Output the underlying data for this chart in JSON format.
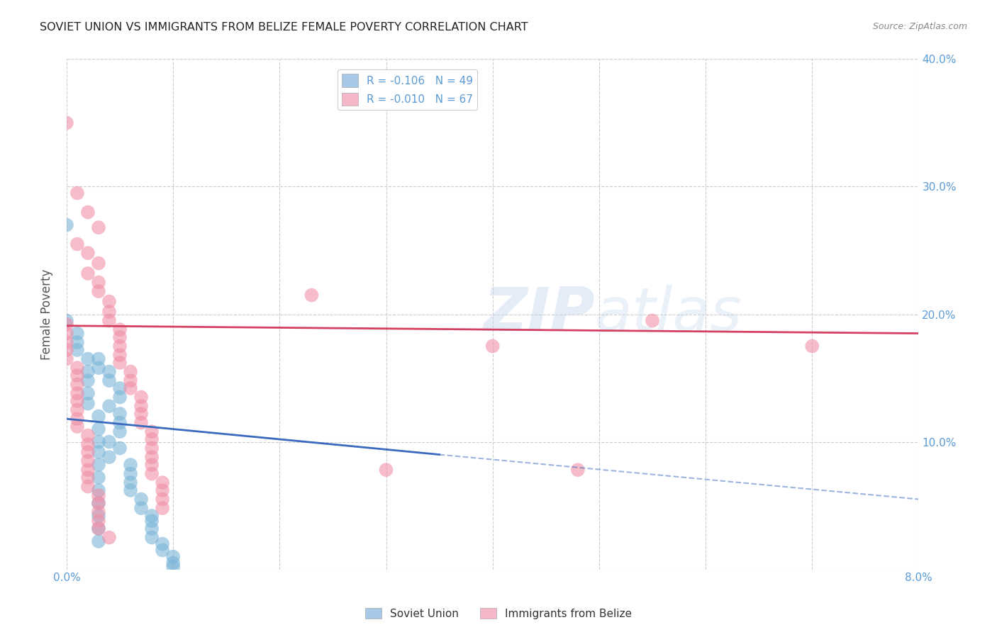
{
  "title": "SOVIET UNION VS IMMIGRANTS FROM BELIZE FEMALE POVERTY CORRELATION CHART",
  "source": "Source: ZipAtlas.com",
  "ylabel": "Female Poverty",
  "x_min": 0.0,
  "x_max": 0.08,
  "y_min": 0.0,
  "y_max": 0.4,
  "x_tick_positions": [
    0.0,
    0.01,
    0.02,
    0.03,
    0.04,
    0.05,
    0.06,
    0.07,
    0.08
  ],
  "x_tick_labels": [
    "0.0%",
    "",
    "",
    "",
    "",
    "",
    "",
    "",
    "8.0%"
  ],
  "y_tick_positions": [
    0.0,
    0.1,
    0.2,
    0.3,
    0.4
  ],
  "y_tick_labels_right": [
    "",
    "10.0%",
    "20.0%",
    "30.0%",
    "40.0%"
  ],
  "watermark": "ZIPatlas",
  "legend_entries": [
    {
      "label": "R = -0.106   N = 49",
      "color": "#a8c8e8"
    },
    {
      "label": "R = -0.010   N = 67",
      "color": "#f4b8c8"
    }
  ],
  "soviet_union_color": "#7ab4d8",
  "belize_color": "#f090a8",
  "soviet_trend_color": "#3a6abf",
  "belize_trend_color": "#d44060",
  "grid_color": "#cccccc",
  "bg_color": "#ffffff",
  "title_color": "#222222",
  "axis_label_color": "#555555",
  "tick_label_color": "#5b9bd5",
  "source_color": "#888888",
  "soviet_trend_x0": 0.0,
  "soviet_trend_y0": 0.118,
  "soviet_trend_x1": 0.035,
  "soviet_trend_y1": 0.09,
  "soviet_trend_ext_x1": 0.08,
  "soviet_trend_ext_y1": 0.055,
  "belize_trend_x0": 0.0,
  "belize_trend_y0": 0.191,
  "belize_trend_x1": 0.08,
  "belize_trend_y1": 0.185,
  "soviet_union_data": [
    [
      0.0,
      0.27
    ],
    [
      0.0,
      0.195
    ],
    [
      0.003,
      0.165
    ],
    [
      0.003,
      0.158
    ],
    [
      0.004,
      0.155
    ],
    [
      0.004,
      0.148
    ],
    [
      0.005,
      0.142
    ],
    [
      0.005,
      0.135
    ],
    [
      0.004,
      0.128
    ],
    [
      0.005,
      0.122
    ],
    [
      0.005,
      0.115
    ],
    [
      0.005,
      0.108
    ],
    [
      0.004,
      0.1
    ],
    [
      0.005,
      0.095
    ],
    [
      0.004,
      0.088
    ],
    [
      0.006,
      0.082
    ],
    [
      0.006,
      0.075
    ],
    [
      0.006,
      0.068
    ],
    [
      0.006,
      0.062
    ],
    [
      0.007,
      0.055
    ],
    [
      0.007,
      0.048
    ],
    [
      0.008,
      0.042
    ],
    [
      0.008,
      0.038
    ],
    [
      0.008,
      0.032
    ],
    [
      0.008,
      0.025
    ],
    [
      0.009,
      0.02
    ],
    [
      0.009,
      0.015
    ],
    [
      0.01,
      0.01
    ],
    [
      0.01,
      0.005
    ],
    [
      0.01,
      0.002
    ],
    [
      0.001,
      0.185
    ],
    [
      0.001,
      0.178
    ],
    [
      0.001,
      0.172
    ],
    [
      0.002,
      0.165
    ],
    [
      0.002,
      0.155
    ],
    [
      0.002,
      0.148
    ],
    [
      0.002,
      0.138
    ],
    [
      0.002,
      0.13
    ],
    [
      0.003,
      0.12
    ],
    [
      0.003,
      0.11
    ],
    [
      0.003,
      0.1
    ],
    [
      0.003,
      0.092
    ],
    [
      0.003,
      0.082
    ],
    [
      0.003,
      0.072
    ],
    [
      0.003,
      0.062
    ],
    [
      0.003,
      0.052
    ],
    [
      0.003,
      0.042
    ],
    [
      0.003,
      0.032
    ],
    [
      0.003,
      0.022
    ]
  ],
  "belize_data": [
    [
      0.0,
      0.35
    ],
    [
      0.001,
      0.295
    ],
    [
      0.002,
      0.28
    ],
    [
      0.003,
      0.268
    ],
    [
      0.001,
      0.255
    ],
    [
      0.002,
      0.248
    ],
    [
      0.003,
      0.24
    ],
    [
      0.002,
      0.232
    ],
    [
      0.003,
      0.225
    ],
    [
      0.003,
      0.218
    ],
    [
      0.004,
      0.21
    ],
    [
      0.004,
      0.202
    ],
    [
      0.004,
      0.195
    ],
    [
      0.005,
      0.188
    ],
    [
      0.005,
      0.182
    ],
    [
      0.005,
      0.175
    ],
    [
      0.005,
      0.168
    ],
    [
      0.005,
      0.162
    ],
    [
      0.006,
      0.155
    ],
    [
      0.006,
      0.148
    ],
    [
      0.006,
      0.142
    ],
    [
      0.007,
      0.135
    ],
    [
      0.007,
      0.128
    ],
    [
      0.007,
      0.122
    ],
    [
      0.007,
      0.115
    ],
    [
      0.008,
      0.108
    ],
    [
      0.008,
      0.102
    ],
    [
      0.008,
      0.095
    ],
    [
      0.008,
      0.088
    ],
    [
      0.008,
      0.082
    ],
    [
      0.008,
      0.075
    ],
    [
      0.009,
      0.068
    ],
    [
      0.009,
      0.062
    ],
    [
      0.009,
      0.055
    ],
    [
      0.009,
      0.048
    ],
    [
      0.0,
      0.192
    ],
    [
      0.0,
      0.185
    ],
    [
      0.0,
      0.178
    ],
    [
      0.0,
      0.172
    ],
    [
      0.0,
      0.165
    ],
    [
      0.001,
      0.158
    ],
    [
      0.001,
      0.152
    ],
    [
      0.001,
      0.145
    ],
    [
      0.001,
      0.138
    ],
    [
      0.001,
      0.132
    ],
    [
      0.001,
      0.125
    ],
    [
      0.001,
      0.118
    ],
    [
      0.001,
      0.112
    ],
    [
      0.002,
      0.105
    ],
    [
      0.002,
      0.098
    ],
    [
      0.002,
      0.092
    ],
    [
      0.002,
      0.085
    ],
    [
      0.002,
      0.078
    ],
    [
      0.002,
      0.072
    ],
    [
      0.002,
      0.065
    ],
    [
      0.003,
      0.058
    ],
    [
      0.003,
      0.052
    ],
    [
      0.003,
      0.045
    ],
    [
      0.003,
      0.038
    ],
    [
      0.003,
      0.032
    ],
    [
      0.004,
      0.025
    ],
    [
      0.023,
      0.215
    ],
    [
      0.03,
      0.078
    ],
    [
      0.04,
      0.175
    ],
    [
      0.048,
      0.078
    ],
    [
      0.055,
      0.195
    ],
    [
      0.07,
      0.175
    ]
  ]
}
